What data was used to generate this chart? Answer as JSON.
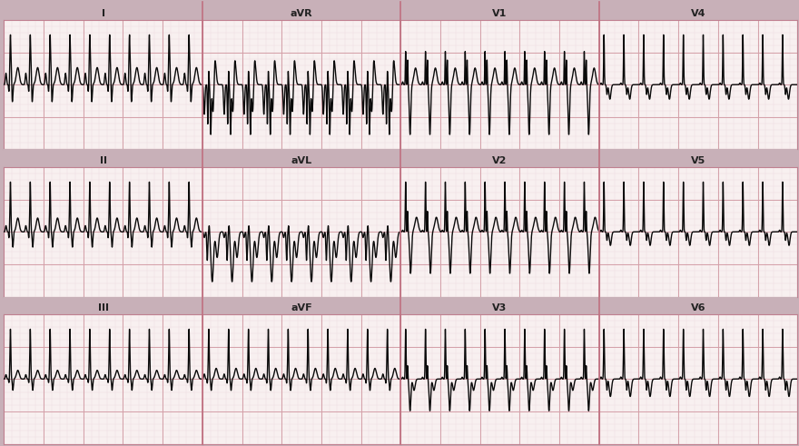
{
  "bg_color": "#f8f0f0",
  "grid_major_color": "#d4a0a8",
  "grid_minor_color": "#eddde0",
  "line_color": "#0a0a0a",
  "border_color": "#c08090",
  "separator_color": "#c07080",
  "label_color": "#222222",
  "fig_bg": "#c8b0b8",
  "header_bg": "#c8b0b8",
  "rows": 3,
  "cols": 4,
  "leads": [
    [
      "I",
      "aVR",
      "V1",
      "V4"
    ],
    [
      "II",
      "aVL",
      "V2",
      "V5"
    ],
    [
      "III",
      "aVF",
      "V3",
      "V6"
    ]
  ],
  "figsize": [
    8.8,
    4.91
  ],
  "dpi": 100
}
